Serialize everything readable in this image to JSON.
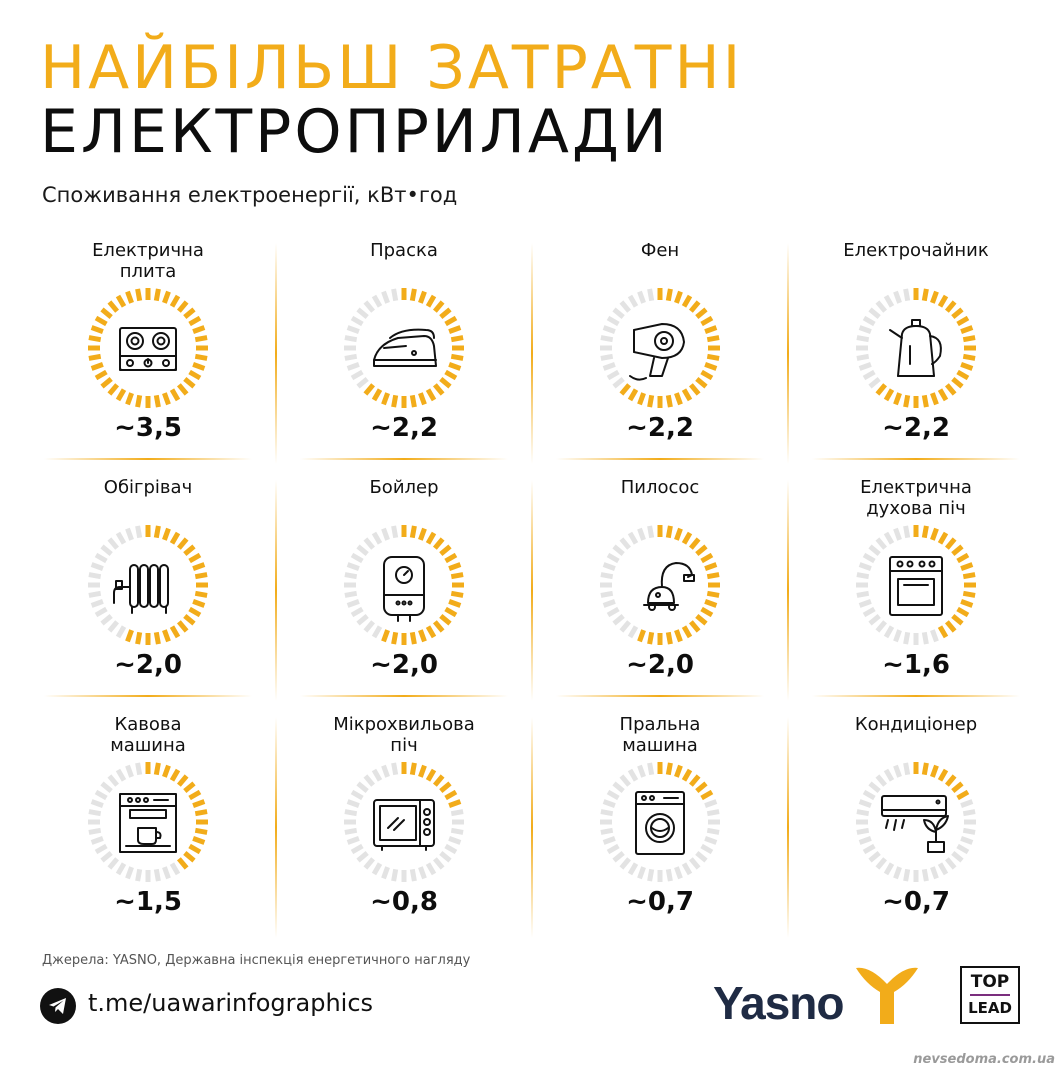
{
  "header": {
    "title_line1": "НАЙБІЛЬШ ЗАТРАТНІ",
    "title_line2": "ЕЛЕКТРОПРИЛАДИ",
    "subtitle": "Споживання електроенергії, кВт•год"
  },
  "colors": {
    "accent": "#f2ac1a",
    "track": "#e3e3e3",
    "text": "#111111"
  },
  "chart_data": {
    "type": "table",
    "title": "",
    "max_scale": 3.5,
    "items": [
      {
        "label": "Електрична\nплита",
        "value": 3.5,
        "value_label": "~3,5",
        "icon": "stove-icon"
      },
      {
        "label": "Праска",
        "value": 2.2,
        "value_label": "~2,2",
        "icon": "iron-icon"
      },
      {
        "label": "Фен",
        "value": 2.2,
        "value_label": "~2,2",
        "icon": "hairdryer-icon"
      },
      {
        "label": "Електрочайник",
        "value": 2.2,
        "value_label": "~2,2",
        "icon": "kettle-icon"
      },
      {
        "label": "Обігрівач",
        "value": 2.0,
        "value_label": "~2,0",
        "icon": "heater-icon"
      },
      {
        "label": "Бойлер",
        "value": 2.0,
        "value_label": "~2,0",
        "icon": "boiler-icon"
      },
      {
        "label": "Пилосос",
        "value": 2.0,
        "value_label": "~2,0",
        "icon": "vacuum-icon"
      },
      {
        "label": "Електрична\nдухова піч",
        "value": 1.6,
        "value_label": "~1,6",
        "icon": "oven-icon"
      },
      {
        "label": "Кавова\nмашина",
        "value": 1.5,
        "value_label": "~1,5",
        "icon": "coffee-machine-icon"
      },
      {
        "label": "Мікрохвильова\nпіч",
        "value": 0.8,
        "value_label": "~0,8",
        "icon": "microwave-icon"
      },
      {
        "label": "Пральна\nмашина",
        "value": 0.7,
        "value_label": "~0,7",
        "icon": "washing-machine-icon"
      },
      {
        "label": "Кондиціонер",
        "value": 0.7,
        "value_label": "~0,7",
        "icon": "air-conditioner-icon"
      }
    ]
  },
  "footer": {
    "source": "Джерела: YASNO, Державна інспекція енергетичного нагляду",
    "telegram_link": "t.me/uawarinfographics",
    "brand_logo": "Yasno",
    "partner_line1": "TOP",
    "partner_line2": "LEAD",
    "watermark": "nevsedoma.com.ua"
  }
}
